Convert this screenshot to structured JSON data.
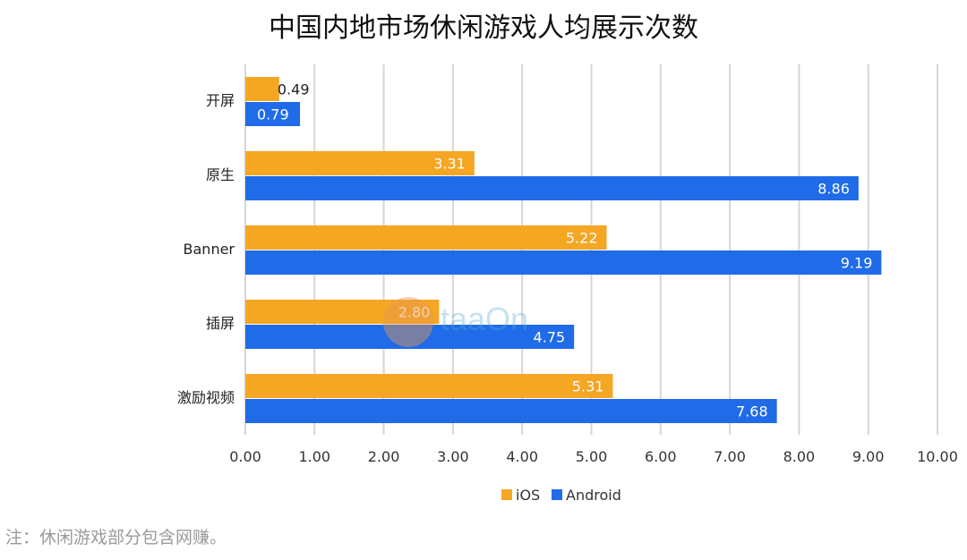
{
  "note": "注：休闲游戏部分包含网赚。",
  "chart_data": {
    "type": "bar",
    "orientation": "horizontal",
    "title": "中国内地市场休闲游戏人均展示次数",
    "categories": [
      "开屏",
      "原生",
      "Banner",
      "插屏",
      "激励视频"
    ],
    "series": [
      {
        "name": "iOS",
        "color": "#F5A623",
        "values": [
          0.49,
          3.31,
          5.22,
          2.8,
          5.31
        ]
      },
      {
        "name": "Android",
        "color": "#1F6BE8",
        "values": [
          0.79,
          8.86,
          9.19,
          4.75,
          7.68
        ]
      }
    ],
    "value_labels": [
      [
        "0.49",
        "3.31",
        "5.22",
        "2.80",
        "5.31"
      ],
      [
        "0.79",
        "8.86",
        "9.19",
        "4.75",
        "7.68"
      ]
    ],
    "xlim": [
      0,
      10
    ],
    "x_ticks": [
      "0.00",
      "1.00",
      "2.00",
      "3.00",
      "4.00",
      "5.00",
      "6.00",
      "7.00",
      "8.00",
      "9.00",
      "10.00"
    ],
    "grid": "vertical",
    "legend": "bottom-center"
  }
}
